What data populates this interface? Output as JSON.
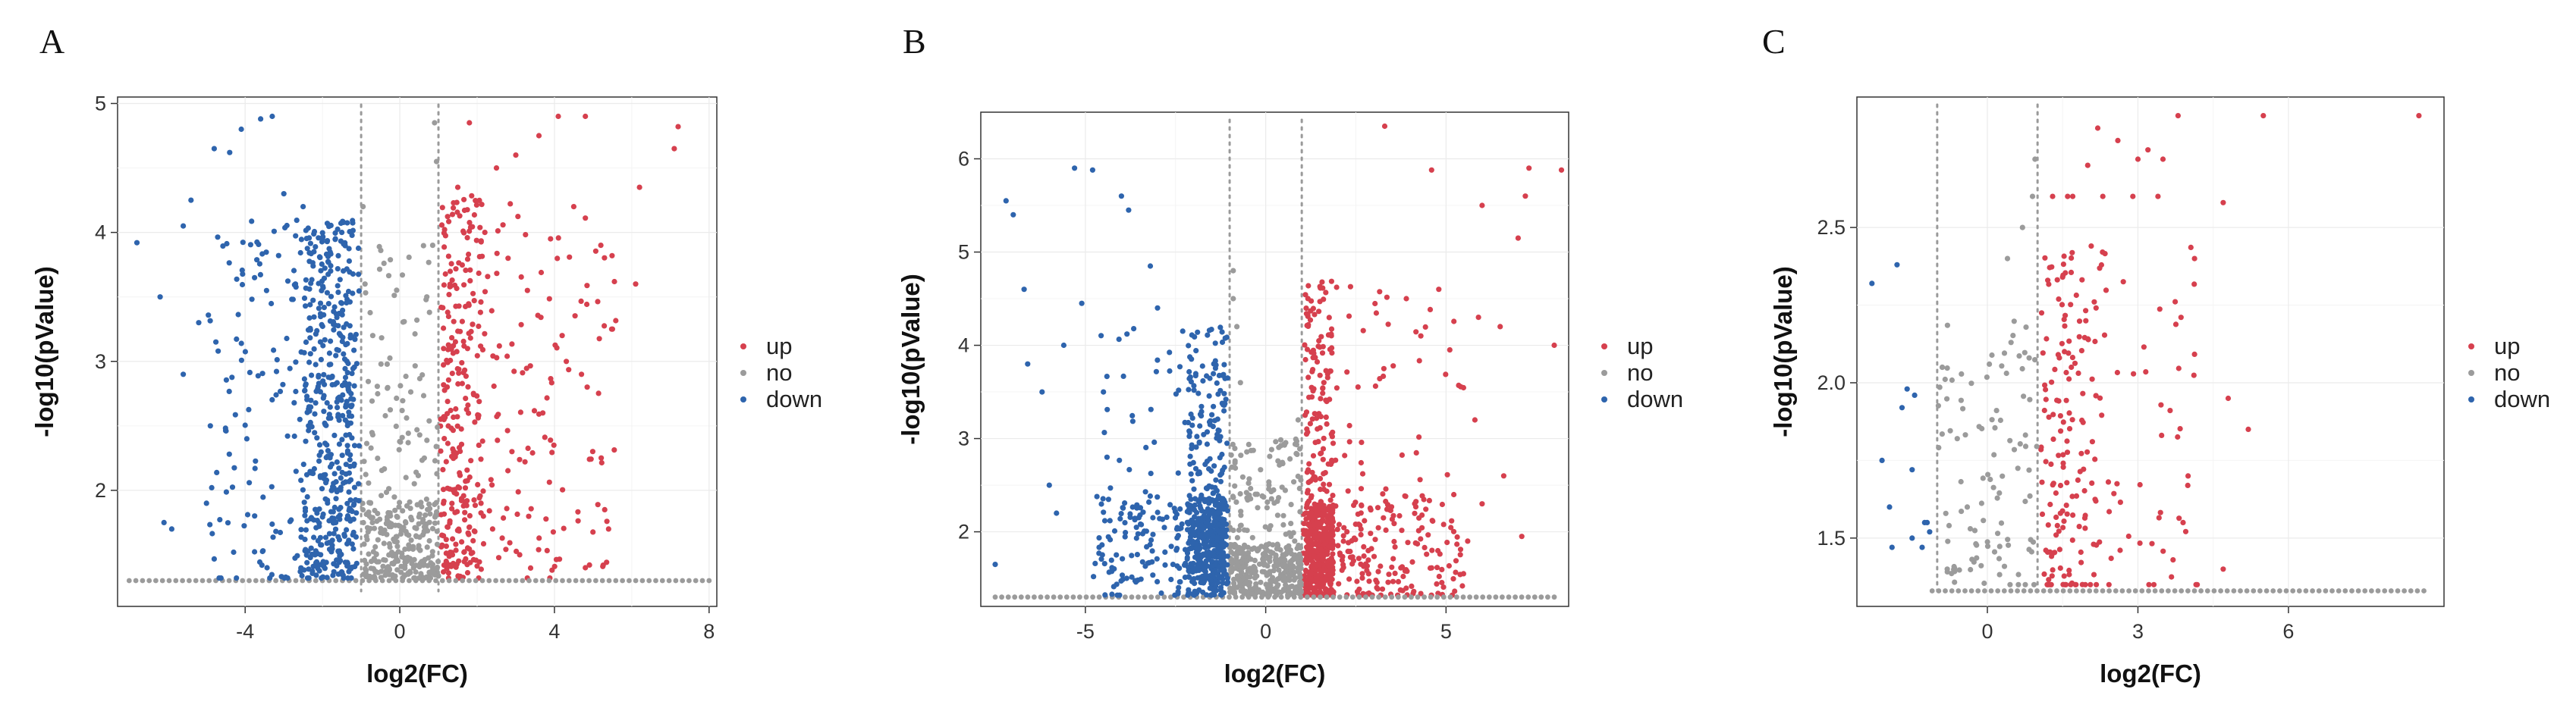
{
  "colors": {
    "up": "#d6404e",
    "no": "#9b9b9b",
    "down": "#2e64ad"
  },
  "chart_data": [
    {
      "panel": "A",
      "type": "scatter",
      "xlabel": "log2(FC)",
      "ylabel": "-log10(pValue)",
      "xlim": [
        -7.3,
        8.2
      ],
      "ylim": [
        1.1,
        5.05
      ],
      "xticks": [
        -4,
        0,
        4,
        8
      ],
      "xtick_labels": [
        "-4",
        "0",
        "4",
        "8"
      ],
      "yticks": [
        2,
        3,
        4,
        5
      ],
      "ytick_labels": [
        "2",
        "3",
        "4",
        "5"
      ],
      "fc_threshold": [
        -1,
        1
      ],
      "p_threshold": 1.3,
      "legend": {
        "position": "right",
        "entries": [
          "up",
          "no",
          "down"
        ]
      },
      "series": [
        {
          "name": "up",
          "color": "#d6404e",
          "count": 420,
          "points": [
            [
              7.2,
              4.82
            ],
            [
              7.1,
              4.65
            ],
            [
              6.2,
              4.35
            ],
            [
              6.1,
              3.6
            ],
            [
              5.5,
              3.25
            ],
            [
              5.4,
              1.7
            ],
            [
              5.3,
              1.85
            ],
            [
              4.8,
              4.9
            ],
            [
              4.5,
              4.2
            ],
            [
              4.1,
              4.9
            ],
            [
              3.9,
              3.95
            ],
            [
              3.6,
              4.75
            ],
            [
              5.2,
              3.9
            ],
            [
              4.8,
              1.4
            ],
            [
              3.0,
              4.6
            ],
            [
              2.5,
              4.5
            ],
            [
              1.8,
              4.85
            ],
            [
              1.5,
              4.35
            ],
            [
              2.2,
              4.0
            ],
            [
              2.8,
              3.8
            ],
            [
              3.3,
              3.55
            ],
            [
              4.2,
              3.2
            ],
            [
              4.7,
              2.9
            ],
            [
              3.7,
              2.6
            ],
            [
              2.9,
              2.3
            ],
            [
              2.1,
              1.9
            ],
            [
              1.6,
              1.6
            ],
            [
              1.2,
              1.45
            ],
            [
              2.4,
              1.7
            ],
            [
              3.1,
              1.5
            ]
          ],
          "region": {
            "x": [
              1.05,
              5.6
            ],
            "y": [
              1.3,
              4.3
            ],
            "concentrate_x": 1.8
          }
        },
        {
          "name": "no",
          "color": "#9b9b9b",
          "count": 330,
          "points": [
            [
              -0.95,
              4.2
            ],
            [
              0.95,
              4.55
            ],
            [
              0.9,
              4.85
            ],
            [
              -0.9,
              3.6
            ],
            [
              0.85,
              3.9
            ],
            [
              -0.7,
              3.2
            ],
            [
              0.7,
              3.5
            ]
          ],
          "region": {
            "x": [
              -1.0,
              1.0
            ],
            "y": [
              1.3,
              3.9
            ],
            "concentrate_y": 1.5
          },
          "line": {
            "y": 1.3,
            "x": [
              -7.0,
              8.0
            ]
          }
        },
        {
          "name": "down",
          "color": "#2e64ad",
          "count": 620,
          "points": [
            [
              -6.8,
              3.92
            ],
            [
              -6.2,
              3.5
            ],
            [
              -5.6,
              4.05
            ],
            [
              -5.4,
              4.25
            ],
            [
              -4.8,
              4.65
            ],
            [
              -4.4,
              4.62
            ],
            [
              -4.1,
              4.8
            ],
            [
              -3.3,
              4.9
            ],
            [
              -3.0,
              4.3
            ],
            [
              -6.1,
              1.75
            ],
            [
              -5.9,
              1.7
            ],
            [
              -5.6,
              2.9
            ],
            [
              -5.2,
              3.3
            ],
            [
              -4.9,
              2.5
            ],
            [
              -3.6,
              4.88
            ],
            [
              -2.5,
              4.2
            ],
            [
              -2.0,
              3.95
            ],
            [
              -1.5,
              4.0
            ],
            [
              -2.7,
              3.6
            ],
            [
              -5.0,
              1.9
            ]
          ],
          "region": {
            "x": [
              -5.0,
              -1.05
            ],
            "y": [
              1.3,
              4.1
            ],
            "concentrate_x": -2.0
          }
        }
      ]
    },
    {
      "panel": "B",
      "type": "scatter",
      "xlabel": "log2(FC)",
      "ylabel": "-log10(pValue)",
      "xlim": [
        -7.9,
        8.4
      ],
      "ylim": [
        1.2,
        6.5
      ],
      "xticks": [
        -5,
        0,
        5
      ],
      "xtick_labels": [
        "-5",
        "0",
        "5"
      ],
      "yticks": [
        2,
        3,
        4,
        5,
        6
      ],
      "ytick_labels": [
        "2",
        "3",
        "4",
        "5",
        "6"
      ],
      "fc_threshold": [
        -1,
        1
      ],
      "p_threshold": 1.3,
      "legend": {
        "position": "right",
        "entries": [
          "up",
          "no",
          "down"
        ]
      },
      "series": [
        {
          "name": "up",
          "color": "#d6404e",
          "count": 800,
          "points": [
            [
              3.3,
              6.35
            ],
            [
              8.2,
              5.88
            ],
            [
              7.3,
              5.9
            ],
            [
              4.6,
              5.88
            ],
            [
              7.2,
              5.6
            ],
            [
              6.0,
              5.5
            ],
            [
              7.0,
              5.15
            ],
            [
              6.5,
              4.2
            ],
            [
              8.0,
              4.0
            ],
            [
              5.9,
              4.3
            ],
            [
              4.8,
              4.6
            ],
            [
              6.6,
              2.6
            ],
            [
              7.1,
              1.95
            ],
            [
              5.6,
              1.9
            ],
            [
              6.0,
              2.3
            ],
            [
              5.8,
              3.2
            ],
            [
              4.3,
              4.1
            ],
            [
              3.9,
              4.5
            ]
          ],
          "region": {
            "x": [
              1.05,
              5.5
            ],
            "y": [
              1.3,
              4.7
            ],
            "concentrate_x": 1.6,
            "concentrate_y": 1.8
          }
        },
        {
          "name": "no",
          "color": "#9b9b9b",
          "count": 420,
          "points": [
            [
              -0.9,
              4.8
            ],
            [
              -0.9,
              4.5
            ],
            [
              0.9,
              3.2
            ],
            [
              -0.8,
              4.2
            ],
            [
              -0.7,
              3.6
            ]
          ],
          "region": {
            "x": [
              -1.0,
              1.0
            ],
            "y": [
              1.3,
              3.0
            ],
            "concentrate_y": 1.6
          },
          "line": {
            "y": 1.3,
            "x": [
              -7.5,
              8.0
            ]
          }
        },
        {
          "name": "down",
          "color": "#2e64ad",
          "count": 700,
          "points": [
            [
              -7.2,
              5.55
            ],
            [
              -7.0,
              5.4
            ],
            [
              -5.3,
              5.9
            ],
            [
              -4.8,
              5.88
            ],
            [
              -6.7,
              4.6
            ],
            [
              -6.6,
              3.8
            ],
            [
              -6.2,
              3.5
            ],
            [
              -5.6,
              4.0
            ],
            [
              -7.5,
              1.65
            ],
            [
              -6.0,
              2.5
            ],
            [
              -5.1,
              4.45
            ],
            [
              -4.0,
              5.6
            ],
            [
              -3.8,
              5.45
            ],
            [
              -3.2,
              4.85
            ],
            [
              -3.0,
              4.4
            ],
            [
              -4.5,
              3.5
            ],
            [
              -5.8,
              2.2
            ],
            [
              -4.4,
              2.8
            ]
          ],
          "region": {
            "x": [
              -4.8,
              -1.05
            ],
            "y": [
              1.3,
              4.2
            ],
            "concentrate_x": -1.8,
            "concentrate_y": 1.9
          }
        }
      ]
    },
    {
      "panel": "C",
      "type": "scatter",
      "xlabel": "log2(FC)",
      "ylabel": "-log10(pValue)",
      "xlim": [
        -2.6,
        9.1
      ],
      "ylim": [
        1.28,
        2.92
      ],
      "xticks": [
        0,
        3,
        6
      ],
      "xtick_labels": [
        "0",
        "3",
        "6"
      ],
      "yticks": [
        1.5,
        2.0,
        2.5
      ],
      "ytick_labels": [
        "1.5",
        "2.0",
        "2.5"
      ],
      "fc_threshold": [
        -1,
        1
      ],
      "p_threshold": 1.33,
      "legend": {
        "position": "right",
        "entries": [
          "up",
          "no",
          "down"
        ]
      },
      "series": [
        {
          "name": "up",
          "color": "#d6404e",
          "count": 230,
          "points": [
            [
              8.6,
              2.86
            ],
            [
              5.5,
              2.86
            ],
            [
              3.8,
              2.86
            ],
            [
              4.7,
              2.58
            ],
            [
              3.0,
              2.72
            ],
            [
              3.5,
              2.72
            ],
            [
              3.2,
              2.75
            ],
            [
              2.6,
              2.78
            ],
            [
              2.2,
              2.82
            ],
            [
              3.4,
              2.6
            ],
            [
              2.9,
              2.6
            ],
            [
              2.3,
              2.6
            ],
            [
              1.7,
              2.6
            ],
            [
              1.6,
              2.6
            ],
            [
              1.3,
              2.6
            ],
            [
              4.8,
              1.95
            ],
            [
              5.2,
              1.85
            ],
            [
              4.0,
              1.7
            ],
            [
              4.7,
              1.4
            ],
            [
              3.9,
              1.55
            ],
            [
              2.0,
              2.7
            ]
          ],
          "region": {
            "x": [
              1.05,
              4.2
            ],
            "y": [
              1.33,
              2.45
            ],
            "concentrate_x": 1.8
          }
        },
        {
          "name": "no",
          "color": "#9b9b9b",
          "count": 110,
          "points": [
            [
              0.95,
              2.72
            ],
            [
              0.7,
              2.5
            ],
            [
              0.9,
              2.6
            ],
            [
              0.4,
              2.4
            ],
            [
              -0.9,
              2.05
            ],
            [
              -0.6,
              1.82
            ],
            [
              -0.4,
              1.6
            ],
            [
              -0.8,
              1.4
            ]
          ],
          "region": {
            "x": [
              -1.0,
              1.0
            ],
            "y": [
              1.33,
              2.2
            ]
          },
          "line": {
            "y": 1.33,
            "x": [
              -1.1,
              8.7
            ]
          }
        },
        {
          "name": "down",
          "color": "#2e64ad",
          "count": 14,
          "points": [
            [
              -2.3,
              2.32
            ],
            [
              -1.8,
              2.38
            ],
            [
              -1.6,
              1.98
            ],
            [
              -1.45,
              1.96
            ],
            [
              -1.7,
              1.92
            ],
            [
              -1.5,
              1.72
            ],
            [
              -2.1,
              1.75
            ],
            [
              -1.2,
              1.55
            ],
            [
              -1.15,
              1.52
            ],
            [
              -1.25,
              1.55
            ],
            [
              -1.95,
              1.6
            ],
            [
              -1.5,
              1.5
            ],
            [
              -1.9,
              1.47
            ],
            [
              -1.3,
              1.47
            ]
          ],
          "region": null
        }
      ]
    }
  ]
}
